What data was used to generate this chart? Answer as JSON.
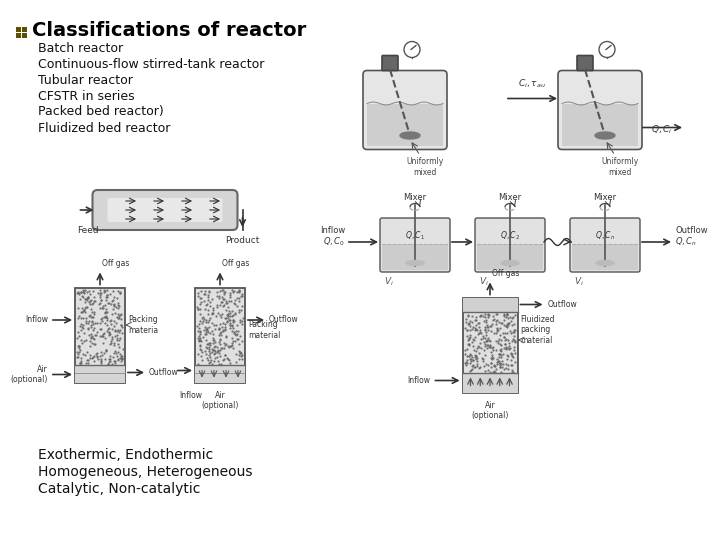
{
  "title": "Classifications of reactor",
  "bullet_items": [
    "Batch reactor",
    "Continuous-flow stirred-tank reactor",
    "Tubular reactor",
    "CFSTR in series",
    "Packed bed reactor)",
    "Fluidized bed reactor"
  ],
  "footer_items": [
    "Exothermic, Endothermic",
    "Homogeneous, Heterogeneous",
    "Catalytic, Non-catalytic"
  ],
  "bg_color": "#ffffff",
  "title_color": "#000000",
  "bullet_color": "#111111",
  "title_fontsize": 14,
  "bullet_fontsize": 9,
  "footer_fontsize": 10,
  "icon_color": "#5a5200"
}
